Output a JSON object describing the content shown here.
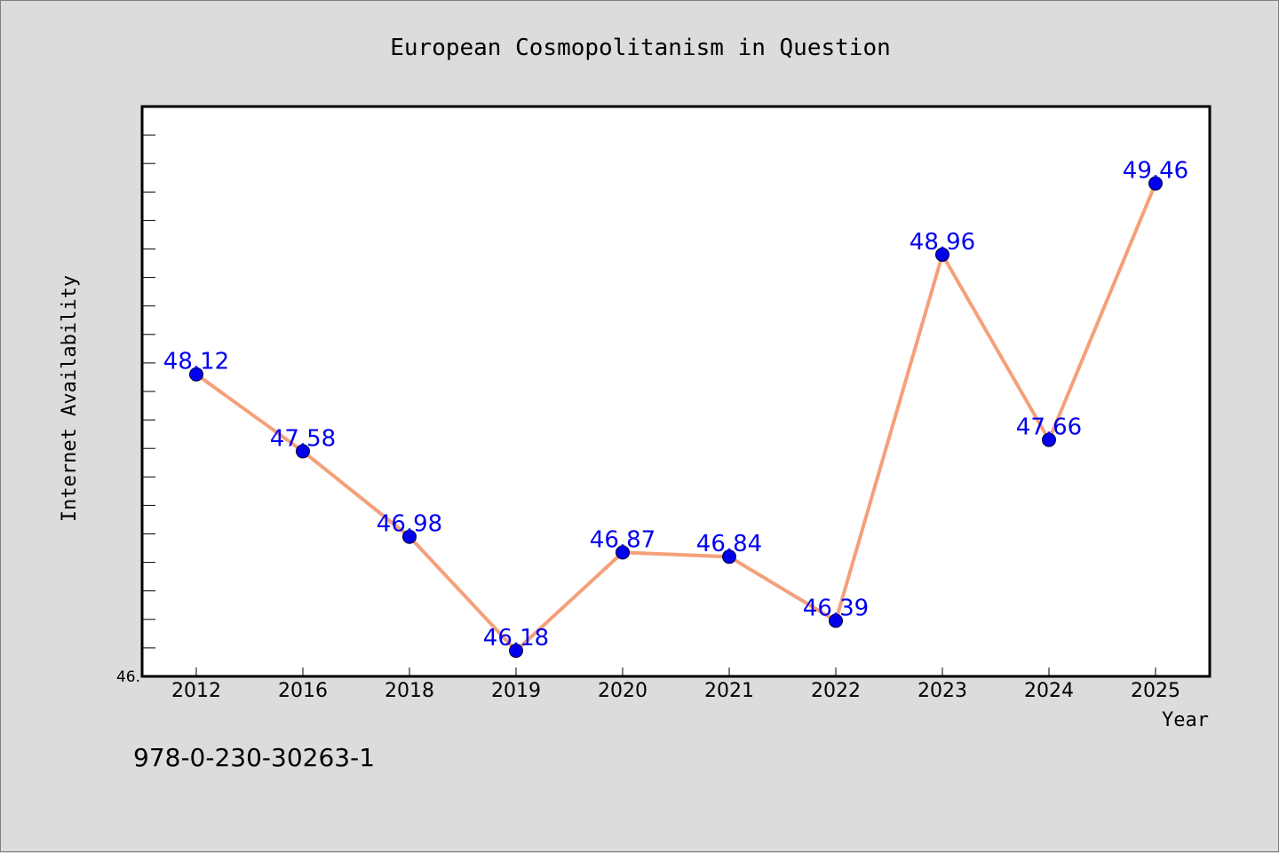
{
  "chart_data": {
    "type": "line",
    "title": "European Cosmopolitanism in Question",
    "xlabel": "Year",
    "ylabel": "Internet Availability",
    "categories": [
      "2012",
      "2016",
      "2018",
      "2019",
      "2020",
      "2021",
      "2022",
      "2023",
      "2024",
      "2025"
    ],
    "series": [
      {
        "values": [
          48.12,
          47.58,
          46.98,
          46.18,
          46.87,
          46.84,
          46.39,
          48.96,
          47.66,
          49.46
        ]
      }
    ],
    "data_labels": [
      "48.12",
      "47.58",
      "46.98",
      "46.18",
      "46.87",
      "46.84",
      "46.39",
      "48.96",
      "47.66",
      "49.46"
    ],
    "ylim": [
      46.0,
      50.0
    ],
    "y_tick_label": "46.",
    "grid": false,
    "legend": "none",
    "colors": {
      "line": "#f4a07a",
      "marker": "#0000ee",
      "label": "#0000ee",
      "background": "#dcdcdc",
      "plot_background": "#ffffff"
    }
  },
  "footer_text": "978-0-230-30263-1"
}
